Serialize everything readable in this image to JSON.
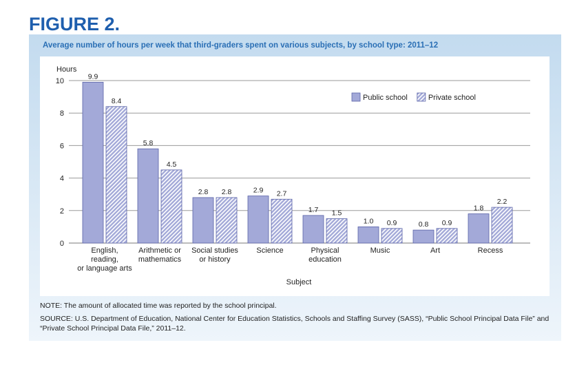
{
  "chart_data": {
    "type": "bar",
    "figure_label": "FIGURE 2.",
    "title": "Average number of hours per week that third-graders spent on various subjects, by school type: 2011–12",
    "y_label": "Hours",
    "x_label": "Subject",
    "categories": [
      "English,\nreading,\nor language arts",
      "Arithmetic or\nmathematics",
      "Social studies\nor history",
      "Science",
      "Physical\neducation",
      "Music",
      "Art",
      "Recess"
    ],
    "series": [
      {
        "name": "Public school",
        "color": "#a3a9d8",
        "pattern": "solid",
        "values": [
          9.9,
          5.8,
          2.8,
          2.9,
          1.7,
          1.0,
          0.8,
          1.8
        ],
        "value_labels": [
          "9.9",
          "5.8",
          "2.8",
          "2.9",
          "1.7",
          "1.0",
          "0.8",
          "1.8"
        ]
      },
      {
        "name": "Private school",
        "color": "#a3a9d8",
        "pattern": "hatch",
        "values": [
          8.4,
          4.5,
          2.8,
          2.7,
          1.5,
          0.9,
          0.9,
          2.2
        ],
        "value_labels": [
          "8.4",
          "4.5",
          "2.8",
          "2.7",
          "1.5",
          "0.9",
          "0.9",
          "2.2"
        ]
      }
    ],
    "ylim": [
      0,
      10
    ],
    "yticks": [
      0,
      2,
      4,
      6,
      8,
      10
    ],
    "grid": true,
    "legend": "upper right",
    "note": "NOTE: The amount of allocated time was reported by the school principal.",
    "source": "SOURCE: U.S. Department of Education, National Center for Education Statistics, Schools and Staffing Survey (SASS), “Public School Principal Data File” and “Private School Principal Data File,” 2011–12."
  }
}
